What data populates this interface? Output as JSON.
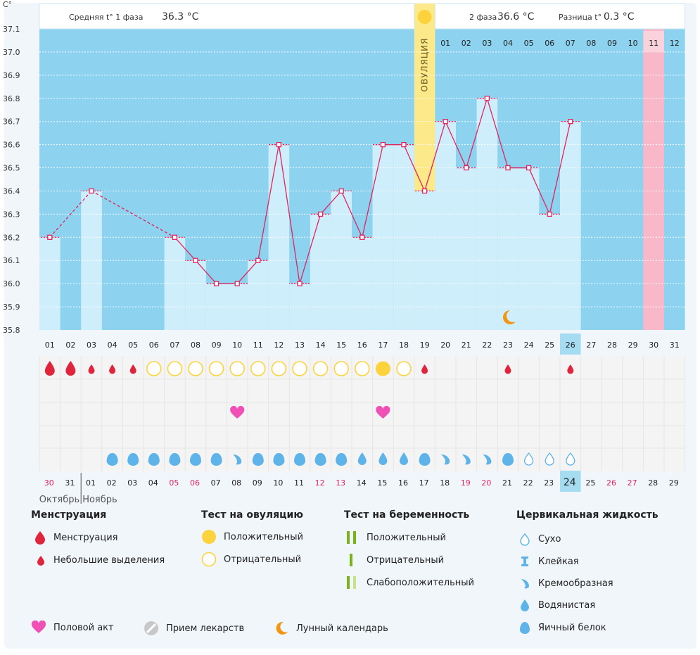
{
  "chart_data": {
    "type": "line",
    "ylabel": "C°",
    "ylim": [
      35.8,
      37.1
    ],
    "yticks": [
      "35.8",
      "35.9",
      "36.0",
      "36.1",
      "36.2",
      "36.3",
      "36.4",
      "36.5",
      "36.6",
      "36.7",
      "36.8",
      "36.9",
      "37.0",
      "37.1"
    ],
    "x": [
      "01",
      "02",
      "03",
      "04",
      "05",
      "06",
      "07",
      "08",
      "09",
      "10",
      "11",
      "12",
      "13",
      "14",
      "15",
      "16",
      "17",
      "18",
      "19",
      "20",
      "21",
      "22",
      "23",
      "24",
      "25",
      "26",
      "27",
      "28",
      "29",
      "30",
      "31"
    ],
    "temps": [
      36.2,
      null,
      36.4,
      null,
      null,
      null,
      36.2,
      36.1,
      36.0,
      36.0,
      36.1,
      36.6,
      36.0,
      36.3,
      36.4,
      36.2,
      36.6,
      36.6,
      36.4,
      36.7,
      36.5,
      36.8,
      36.5,
      36.5,
      36.3,
      36.7,
      null,
      null,
      null,
      null,
      null
    ],
    "highlight_day": "26",
    "bottom_dates": [
      "30",
      "31",
      "01",
      "02",
      "03",
      "04",
      "05",
      "06",
      "07",
      "08",
      "09",
      "10",
      "11",
      "12",
      "13",
      "14",
      "15",
      "16",
      "17",
      "18",
      "19",
      "20",
      "21",
      "22",
      "23",
      "24",
      "25",
      "26",
      "27",
      "28",
      "29"
    ],
    "bottom_red": [
      "30",
      "05",
      "06",
      "12",
      "13",
      "19",
      "20",
      "26",
      "27"
    ],
    "bottom_highlight": "24",
    "month_left": "Октябрь",
    "month_right": "Ноябрь",
    "phase2_days": [
      "01",
      "02",
      "03",
      "04",
      "05",
      "06",
      "07",
      "08",
      "09",
      "10",
      "11",
      "12"
    ],
    "phase2_highlight": "11",
    "menstruation": [
      "big",
      "big",
      "small",
      "small",
      "small",
      "",
      "",
      "",
      "",
      "",
      "",
      "",
      "",
      "",
      "",
      "",
      "",
      "",
      "small",
      "",
      "",
      "",
      "small",
      "",
      "",
      "small",
      "",
      "",
      "",
      "",
      ""
    ],
    "ovulation_test": [
      "",
      "",
      "",
      "",
      "",
      "neg",
      "neg",
      "neg",
      "neg",
      "neg",
      "neg",
      "neg",
      "neg",
      "neg",
      "neg",
      "neg",
      "pos",
      "neg",
      "",
      "",
      "",
      "",
      "",
      "",
      "",
      "",
      "",
      "",
      "",
      "",
      ""
    ],
    "intercourse": [
      "",
      "",
      "",
      "",
      "",
      "",
      "",
      "",
      "",
      "heart",
      "",
      "",
      "",
      "",
      "",
      "",
      "heart",
      "",
      "",
      "",
      "",
      "",
      "",
      "",
      "",
      "",
      "",
      "",
      "",
      "",
      ""
    ],
    "cervical": [
      "",
      "",
      "",
      "egg",
      "egg",
      "egg",
      "egg",
      "egg",
      "egg",
      "creamy",
      "egg",
      "egg",
      "egg",
      "egg",
      "egg",
      "watery",
      "watery",
      "watery",
      "egg",
      "creamy",
      "creamy",
      "creamy",
      "egg",
      "dry",
      "dry",
      "dry",
      "",
      "",
      "",
      "",
      ""
    ],
    "moon_day": "23",
    "colors": {
      "bg_blue": "#8dd3f0",
      "bar_light": "#cfeefc",
      "line": "#e0245e",
      "ovulation": "#fce98a",
      "pink": "#f9b8c9",
      "highlight": "#a6dcf2",
      "red_text": "#e0245e",
      "yellow": "#fcd33c",
      "drop_blue": "#5eb3e8"
    }
  },
  "header": {
    "phase1_label": "Средняя t° 1 фаза",
    "phase1_value": "36.3 °C",
    "phase2_label": "2 фаза",
    "phase2_value": "36.6 °C",
    "diff_label": "Разница t°",
    "diff_value": "0.3 °C",
    "ovulation_label": "ОВУЛЯЦИЯ"
  },
  "legend": {
    "menstruation_title": "Менструация",
    "menstruation": "Менструация",
    "small_discharge": "Небольшие выделения",
    "ovulation_title": "Тест на овуляцию",
    "positive": "Положительный",
    "negative": "Отрицательный",
    "pregnancy_title": "Тест на беременность",
    "preg_positive": "Положительный",
    "preg_negative": "Отрицательный",
    "preg_weak": "Слабоположительный",
    "cervical_title": "Цервикальная жидкость",
    "dry": "Сухо",
    "sticky": "Клейкая",
    "creamy": "Кремообразная",
    "watery": "Водянистая",
    "egg_white": "Яичный белок",
    "intercourse": "Половой акт",
    "medication": "Прием лекарств",
    "lunar": "Лунный календарь"
  }
}
